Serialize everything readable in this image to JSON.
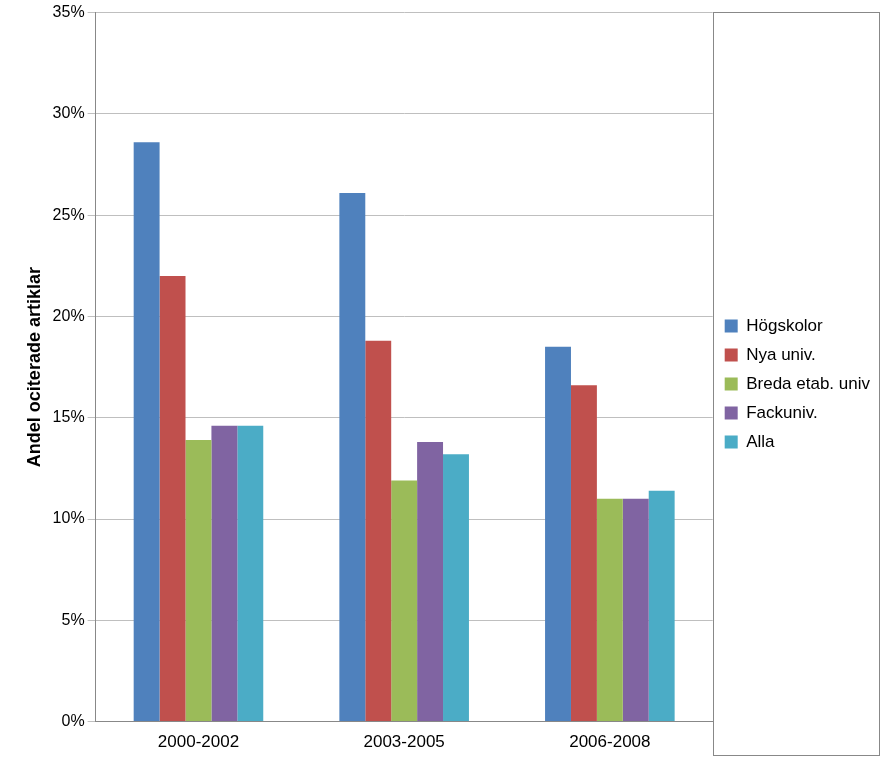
{
  "chart_data": {
    "type": "bar",
    "y_label": "Andel ociterade artiklar",
    "categories": [
      "2000-2002",
      "2003-2005",
      "2006-2008"
    ],
    "series": [
      {
        "name": "Högskolor",
        "color": "#4f81bd",
        "values": [
          28.6,
          26.1,
          18.5
        ]
      },
      {
        "name": "Nya univ.",
        "color": "#c0504d",
        "values": [
          22.0,
          18.8,
          16.6
        ]
      },
      {
        "name": "Breda etab. univ",
        "color": "#9bbb59",
        "values": [
          13.9,
          11.9,
          11.0
        ]
      },
      {
        "name": "Fackuniv.",
        "color": "#8064a2",
        "values": [
          14.6,
          13.8,
          11.0
        ]
      },
      {
        "name": "Alla",
        "color": "#4bacc6",
        "values": [
          14.6,
          13.2,
          11.4
        ]
      }
    ],
    "ylim": [
      0,
      35
    ],
    "yticks": [
      {
        "value": 0,
        "label": "0%"
      },
      {
        "value": 5,
        "label": "5%"
      },
      {
        "value": 10,
        "label": "10%"
      },
      {
        "value": 15,
        "label": "15%"
      },
      {
        "value": 20,
        "label": "20%"
      },
      {
        "value": 25,
        "label": "25%"
      },
      {
        "value": 30,
        "label": "30%"
      },
      {
        "value": 35,
        "label": "35%"
      }
    ],
    "grid": true,
    "legend": "right"
  }
}
